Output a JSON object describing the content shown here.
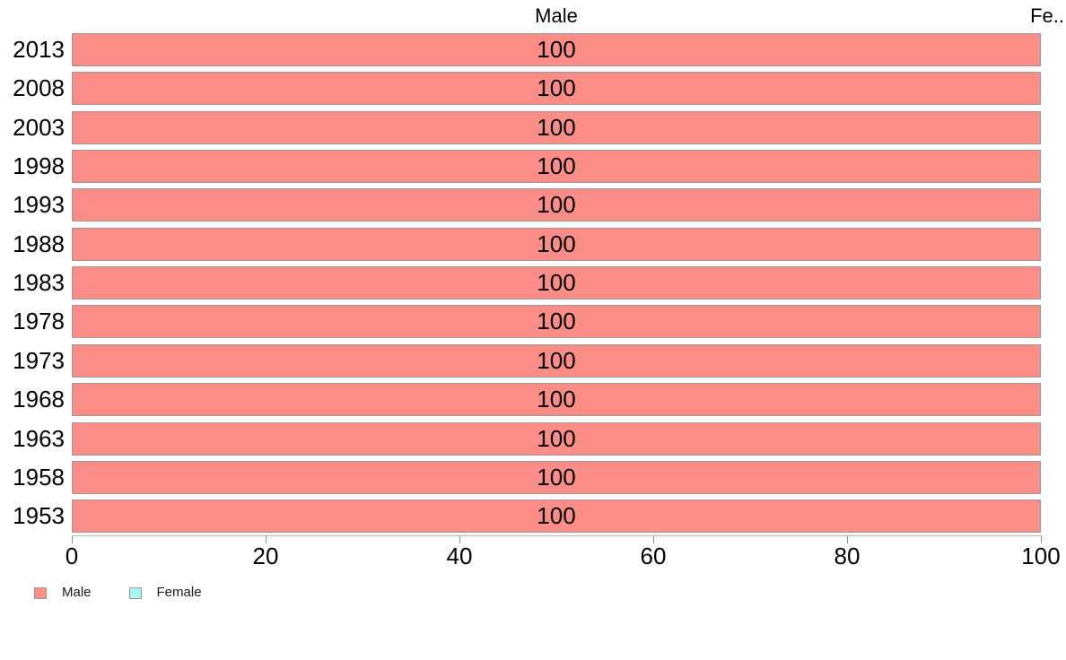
{
  "chart_data": {
    "type": "bar",
    "orientation": "horizontal",
    "pane_headers": [
      "Male",
      "Fe.."
    ],
    "categories": [
      "2013",
      "2008",
      "2003",
      "1998",
      "1993",
      "1988",
      "1983",
      "1978",
      "1973",
      "1968",
      "1963",
      "1958",
      "1953"
    ],
    "series": [
      {
        "name": "Male",
        "color": "#FC8D86",
        "values": [
          100,
          100,
          100,
          100,
          100,
          100,
          100,
          100,
          100,
          100,
          100,
          100,
          100
        ]
      },
      {
        "name": "Female",
        "color": "#A5F7F0",
        "values": []
      }
    ],
    "xlabel": "",
    "ylabel": "",
    "xlim": [
      0,
      100
    ],
    "x_ticks": [
      0,
      20,
      40,
      60,
      80,
      100
    ],
    "grid": false,
    "bar_value_labels_shown": true,
    "legend_position": "bottom-left"
  },
  "colors": {
    "background": "#FFFFFF",
    "bar_border": "#999999",
    "axis_line": "#B7B7B7",
    "tick_mark": "#8A8A8A",
    "text": "#000000"
  }
}
